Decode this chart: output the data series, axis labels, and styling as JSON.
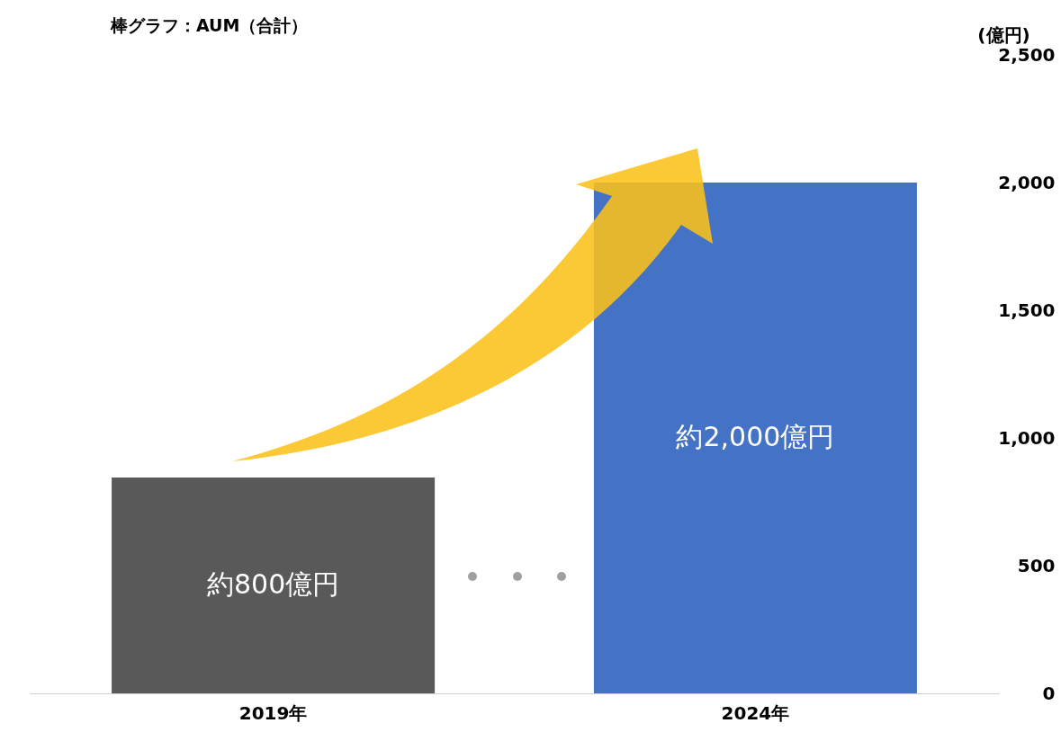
{
  "chart_data": {
    "type": "bar",
    "title": "棒グラフ：AUM（合計）",
    "ylabel": "(億円)",
    "categories": [
      "2019年",
      "2024年"
    ],
    "values": [
      845,
      2000
    ],
    "colors": [
      "#595959",
      "#4472c4"
    ],
    "value_labels": [
      "約800億円",
      "約2,000億円"
    ],
    "ylim": [
      0,
      2500
    ],
    "yticks": [
      0,
      {
        "value": 500,
        "label": "500"
      },
      {
        "value": 1000,
        "label": "1,000"
      },
      {
        "value": 1500,
        "label": "1,500"
      },
      {
        "value": 2000,
        "label": "2,000"
      },
      {
        "value": 2500,
        "label": "2,500"
      }
    ],
    "grid": false
  }
}
